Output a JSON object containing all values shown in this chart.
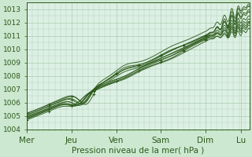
{
  "title": "Pression niveau de la mer( hPa )",
  "bg_color": "#cce8d0",
  "plot_bg_color": "#ddf0e4",
  "line_color": "#2d5a1b",
  "grid_color": "#a8ccb0",
  "ylim": [
    1004,
    1013.5
  ],
  "yticks": [
    1004,
    1005,
    1006,
    1007,
    1008,
    1009,
    1010,
    1011,
    1012,
    1013
  ],
  "day_labels": [
    "Mer",
    "Jeu",
    "Ven",
    "Sam",
    "Dim",
    "Lu"
  ],
  "day_positions": [
    0,
    48,
    96,
    144,
    192,
    230
  ],
  "xlabel_fontsize": 7.5,
  "ylabel_fontsize": 6.5,
  "n_points": 240
}
